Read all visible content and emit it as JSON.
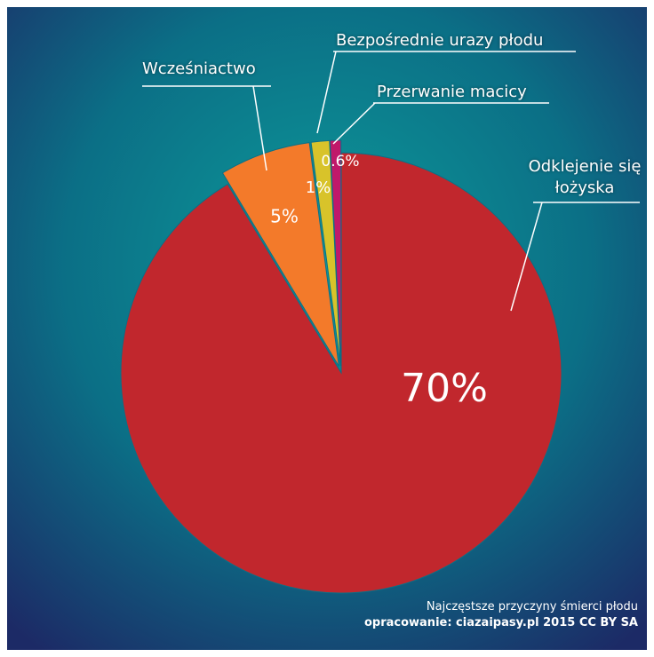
{
  "chart_data": {
    "type": "pie",
    "categories": [
      "Odklejenie się łożyska",
      "Wcześniactwo",
      "Bezpośrednie urazy płodu",
      "Przerwanie macicy"
    ],
    "values": [
      70,
      5,
      1,
      0.6
    ],
    "value_labels": [
      "70%",
      "5%",
      "1%",
      "0.6%"
    ],
    "colors": [
      "#c1272d",
      "#f37a2a",
      "#d8c32a",
      "#c0186a"
    ],
    "footer": [
      "Najczęstsze przyczyny śmierci płodu",
      "opracowanie: ciazaipasy.pl 2015 CC BY SA"
    ]
  }
}
